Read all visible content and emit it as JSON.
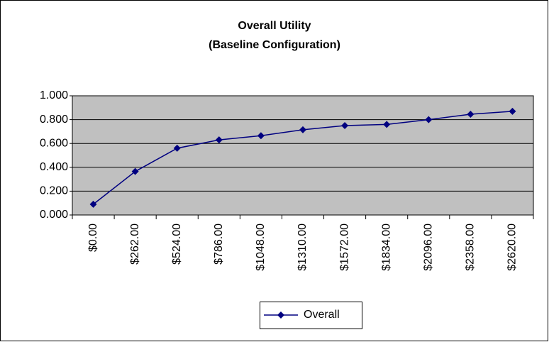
{
  "chart_data": {
    "type": "line",
    "title": [
      "Overall Utility",
      "(Baseline Configuration)"
    ],
    "categories": [
      "$0.00",
      "$262.00",
      "$524.00",
      "$786.00",
      "$1048.00",
      "$1310.00",
      "$1572.00",
      "$1834.00",
      "$2096.00",
      "$2358.00",
      "$2620.00"
    ],
    "series": [
      {
        "name": "Overall",
        "color": "#000080",
        "values": [
          0.09,
          0.365,
          0.56,
          0.63,
          0.665,
          0.715,
          0.75,
          0.76,
          0.8,
          0.845,
          0.87
        ]
      }
    ],
    "ylim": [
      0,
      1
    ],
    "yticks": [
      {
        "value": 0,
        "label": "0.000"
      },
      {
        "value": 0.2,
        "label": "0.200"
      },
      {
        "value": 0.4,
        "label": "0.400"
      },
      {
        "value": 0.6,
        "label": "0.600"
      },
      {
        "value": 0.8,
        "label": "0.800"
      },
      {
        "value": 1,
        "label": "1.000"
      }
    ],
    "grid": true,
    "legend": "bottom"
  }
}
